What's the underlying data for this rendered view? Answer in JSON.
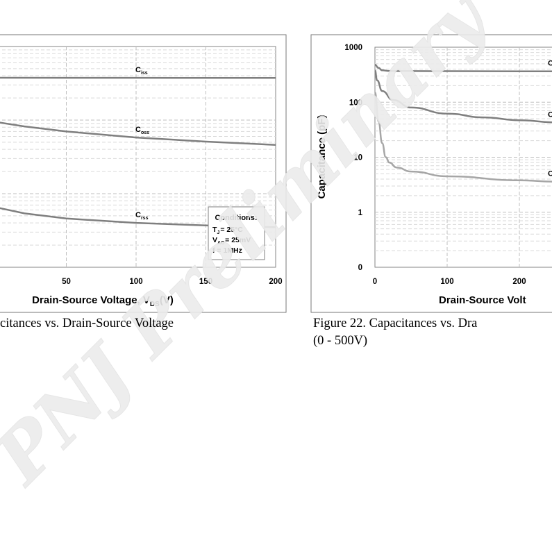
{
  "colors": {
    "curve": "#7f7f7f",
    "curve_rss_right": "#a6a6a6",
    "grid": "#d9d9d9",
    "axis": "#868686",
    "watermark": "#efefef"
  },
  "watermark": "PNJ Preliminary",
  "captions": {
    "left": "citances vs. Drain-Source Voltage",
    "right_line1": "Figure 22. Capacitances vs. Dra",
    "right_line2": "(0 - 500V)"
  },
  "chart_data": [
    {
      "type": "line",
      "title": "",
      "xlabel_main": "Drain-Source Voltage, V",
      "xlabel_sub": "DS",
      "xlabel_tail": "(V)",
      "ylabel": "",
      "x_ticks": [
        "50",
        "100",
        "150",
        "200"
      ],
      "series": [
        {
          "name": "C",
          "sub": "iss",
          "x": [
            0,
            50,
            100,
            150,
            200
          ],
          "y": [
            376,
            375,
            375,
            374,
            374
          ]
        },
        {
          "name": "C",
          "sub": "oss",
          "x": [
            0,
            20,
            50,
            100,
            150,
            200
          ],
          "y": [
            94,
            82,
            70,
            58,
            51,
            46
          ]
        },
        {
          "name": "C",
          "sub": "rss",
          "x": [
            0,
            20,
            50,
            100,
            150,
            200
          ],
          "y": [
            6.5,
            5.4,
            4.6,
            4.0,
            3.7,
            3.5
          ]
        }
      ],
      "conditions": {
        "title": "Conditions:",
        "line1_main": "T",
        "line1_sub": "J",
        "line1_tail": "= 25°C",
        "line2_main": "V",
        "line2_sub": "AC",
        "line2_tail": "= 25mV",
        "line3": "f = 1MHz"
      }
    },
    {
      "type": "line",
      "title": "",
      "xlabel_main": "Drain-Source Volt",
      "ylabel": "Capacitance (pF)",
      "x_ticks": [
        "0",
        "100",
        "200"
      ],
      "y_ticks": [
        "1000",
        "100",
        "10",
        "1",
        "0"
      ],
      "series": [
        {
          "name": "C",
          "x": [
            0,
            5,
            10,
            20,
            50,
            100,
            200,
            250
          ],
          "y": [
            480,
            420,
            380,
            370,
            368,
            367,
            365,
            365
          ]
        },
        {
          "name": "C",
          "x": [
            0,
            3,
            10,
            25,
            50,
            100,
            150,
            200,
            250
          ],
          "y": [
            380,
            250,
            160,
            110,
            80,
            62,
            53,
            47,
            43
          ]
        },
        {
          "name": "C",
          "x": [
            0,
            5,
            10,
            15,
            20,
            30,
            50,
            100,
            200,
            250
          ],
          "y": [
            150,
            45,
            18,
            10,
            8,
            6.5,
            5.5,
            4.5,
            3.8,
            3.6
          ]
        }
      ]
    }
  ]
}
